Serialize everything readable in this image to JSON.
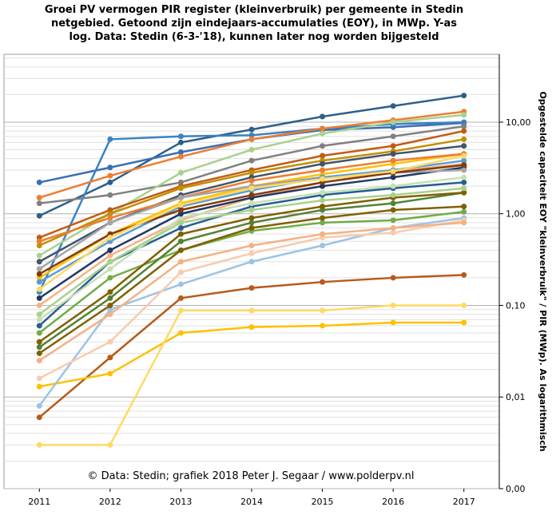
{
  "chart_data": {
    "type": "line",
    "title": [
      "Groei PV vermogen PIR register (kleinverbruik)  per gemeente in Stedin",
      "netgebied. Getoond zijn eindejaars-accumulaties (EOY), in MWp. Y-as",
      "log. Data: Stedin (6-3-'18), kunnen later nog worden bijgesteld"
    ],
    "y_label": "Opgestelde capaciteit EOY \"kleinverbruik\" / PIR (MWp). As logarithmisch",
    "annotation": "© Data: Stedin; grafiek 2018 Peter J. Segaar / www.polderpv.nl",
    "x": [
      2011,
      2012,
      2013,
      2014,
      2015,
      2016,
      2017
    ],
    "xlim": [
      2010.5,
      2017.5
    ],
    "xticks": [
      2011,
      2012,
      2013,
      2014,
      2015,
      2016,
      2017
    ],
    "ylim": [
      0.001,
      55
    ],
    "yticks": [
      {
        "value": 0.001,
        "label": "0,00"
      },
      {
        "value": 0.01,
        "label": "0,01"
      },
      {
        "value": 0.1,
        "label": "0,10"
      },
      {
        "value": 1,
        "label": "1,00"
      },
      {
        "value": 10,
        "label": "10,00"
      }
    ],
    "log_scale": true,
    "grid": true,
    "minor_grid": [
      2,
      3,
      4,
      5,
      6,
      7,
      8,
      9
    ],
    "markers": true,
    "series": [
      {
        "color": "#2e5f8a",
        "values": [
          0.95,
          2.2,
          6,
          8.3,
          11.5,
          15,
          19.5
        ]
      },
      {
        "color": "#3a6fb5",
        "values": [
          2.2,
          3.2,
          4.7,
          6.5,
          8.2,
          8.8,
          9.8
        ]
      },
      {
        "color": "#3b82c4",
        "values": [
          0.14,
          6.5,
          7,
          7.2,
          8.5,
          9.5,
          10
        ]
      },
      {
        "color": "#ed7d31",
        "values": [
          1.5,
          2.6,
          4.2,
          6.5,
          8.5,
          10.5,
          13
        ]
      },
      {
        "color": "#808080",
        "values": [
          1.3,
          1.6,
          2.2,
          3.8,
          5.5,
          7,
          9
        ]
      },
      {
        "color": "#a9d18e",
        "values": [
          0.35,
          1.0,
          2.8,
          5,
          7.5,
          10,
          12
        ]
      },
      {
        "color": "#c55a11",
        "values": [
          0.55,
          1.1,
          2,
          3,
          4.3,
          5.5,
          8
        ]
      },
      {
        "color": "#ffc000",
        "values": [
          0.2,
          0.6,
          1.3,
          2,
          2.7,
          3.5,
          4.5
        ]
      },
      {
        "color": "#bf9000",
        "values": [
          0.45,
          1.0,
          1.9,
          2.8,
          3.8,
          4.8,
          6.5
        ]
      },
      {
        "color": "#44546a",
        "values": [
          0.3,
          0.8,
          1.6,
          2.5,
          3.5,
          4.5,
          5.5
        ]
      },
      {
        "color": "#f4b183",
        "values": [
          0.1,
          0.35,
          0.85,
          1.5,
          2.2,
          2.9,
          3.5
        ]
      },
      {
        "color": "#b85a1b",
        "values": [
          0.006,
          0.027,
          0.12,
          0.155,
          0.18,
          0.2,
          0.215
        ]
      },
      {
        "color": "#ffc000",
        "values": [
          0.013,
          0.018,
          0.05,
          0.058,
          0.06,
          0.065,
          0.065
        ]
      },
      {
        "color": "#ffd966",
        "values": [
          0.003,
          0.003,
          0.088,
          0.088,
          0.088,
          0.1,
          0.1
        ]
      },
      {
        "color": "#9dc3e6",
        "values": [
          0.008,
          0.09,
          0.17,
          0.3,
          0.45,
          0.7,
          0.9
        ]
      },
      {
        "color": "#f8cbad",
        "values": [
          0.016,
          0.04,
          0.23,
          0.37,
          0.55,
          0.62,
          0.85
        ]
      },
      {
        "color": "#f4b183",
        "values": [
          0.025,
          0.08,
          0.3,
          0.45,
          0.6,
          0.7,
          0.8
        ]
      },
      {
        "color": "#70ad47",
        "values": [
          0.05,
          0.2,
          0.4,
          0.65,
          0.8,
          0.85,
          1.05
        ]
      },
      {
        "color": "#548235",
        "values": [
          0.035,
          0.12,
          0.5,
          0.8,
          1.1,
          1.3,
          1.7
        ]
      },
      {
        "color": "#7f6000",
        "values": [
          0.04,
          0.14,
          0.6,
          0.9,
          1.2,
          1.5,
          1.7
        ]
      },
      {
        "color": "#255e91",
        "values": [
          0.06,
          0.3,
          0.7,
          1.2,
          1.6,
          1.9,
          2.2
        ]
      },
      {
        "color": "#c5e0b4",
        "values": [
          0.07,
          0.25,
          0.9,
          1.3,
          1.7,
          2.0,
          2.5
        ]
      },
      {
        "color": "#203864",
        "values": [
          0.12,
          0.4,
          1.0,
          1.5,
          2.0,
          2.5,
          3.2
        ]
      },
      {
        "color": "#ed7d31",
        "values": [
          0.5,
          0.9,
          1.5,
          2.3,
          3.0,
          3.8,
          4.5
        ]
      },
      {
        "color": "#a5a5a5",
        "values": [
          0.25,
          0.8,
          1.5,
          2.0,
          2.5,
          2.8,
          3.0
        ]
      },
      {
        "color": "#5b9bd5",
        "values": [
          0.18,
          0.5,
          1.2,
          1.8,
          2.5,
          3.0,
          3.8
        ]
      },
      {
        "color": "#a9d18e",
        "values": [
          0.08,
          0.3,
          0.8,
          1.1,
          1.4,
          1.6,
          1.9
        ]
      },
      {
        "color": "#843c0c",
        "values": [
          0.22,
          0.6,
          1.1,
          1.6,
          2.2,
          2.8,
          3.4
        ]
      },
      {
        "color": "#ffd966",
        "values": [
          0.15,
          0.55,
          1.25,
          1.9,
          2.4,
          2.9,
          4.3
        ]
      },
      {
        "color": "#806000",
        "values": [
          0.03,
          0.1,
          0.4,
          0.7,
          0.9,
          1.1,
          1.2
        ]
      }
    ]
  }
}
